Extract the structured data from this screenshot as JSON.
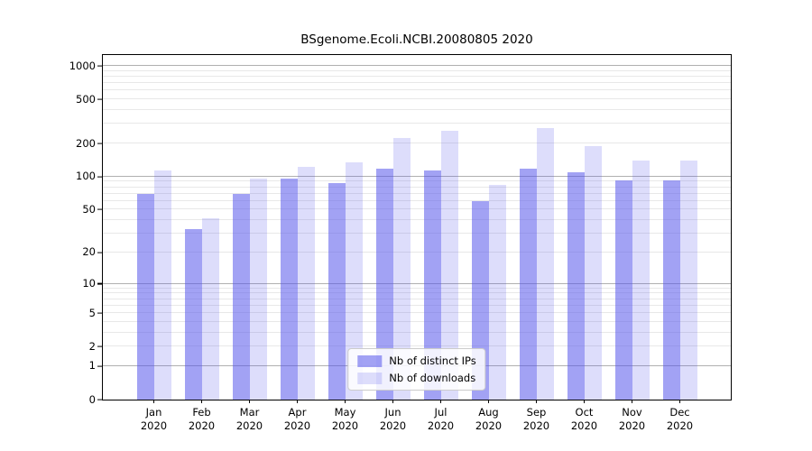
{
  "chart_data": {
    "type": "bar",
    "title": "BSgenome.Ecoli.NCBI.20080805 2020",
    "categories": [
      "Jan",
      "Feb",
      "Mar",
      "Apr",
      "May",
      "Jun",
      "Jul",
      "Aug",
      "Sep",
      "Oct",
      "Nov",
      "Dec"
    ],
    "year_label": "2020",
    "series": [
      {
        "name": "Nb of distinct IPs",
        "color": "rgba(85,85,235,0.55)",
        "values": [
          70,
          33,
          70,
          96,
          88,
          118,
          113,
          60,
          119,
          110,
          92,
          92
        ]
      },
      {
        "name": "Nb of downloads",
        "color": "rgba(85,85,235,0.20)",
        "values": [
          114,
          42,
          96,
          122,
          134,
          225,
          260,
          84,
          276,
          190,
          140,
          141
        ]
      }
    ],
    "yscale": "log1p",
    "ylim": [
      0,
      1253
    ],
    "yticks": [
      0,
      1,
      2,
      5,
      10,
      20,
      50,
      100,
      200,
      500,
      1000
    ],
    "major_gridlines": [
      1,
      10,
      100,
      1000
    ],
    "minor_gridlines": [
      2,
      3,
      4,
      5,
      6,
      7,
      8,
      9,
      20,
      30,
      40,
      50,
      60,
      70,
      80,
      90,
      200,
      300,
      400,
      500,
      600,
      700,
      800,
      900
    ],
    "grid": true,
    "legend_position": "lower center",
    "colors": {
      "major_gridline": "#b0b0b0",
      "minor_gridline": "#e8e8e8",
      "axis_frame": "#000000"
    }
  }
}
